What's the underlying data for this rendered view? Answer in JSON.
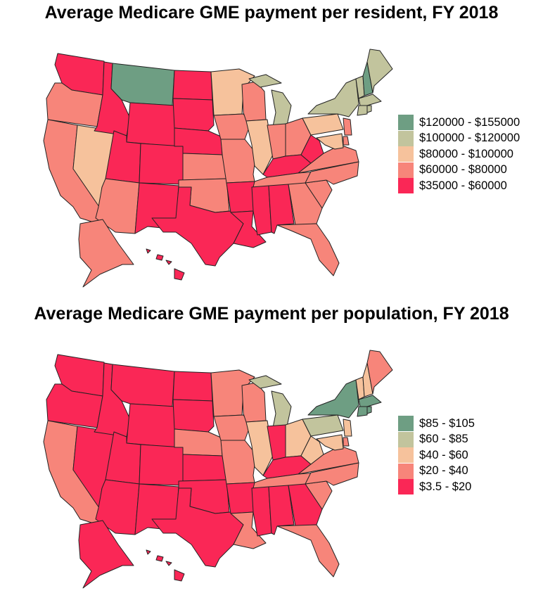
{
  "colors": {
    "c1": "#6e9e83",
    "c2": "#c2c49d",
    "c3": "#f6c29c",
    "c4": "#f7857a",
    "c5": "#fa2756"
  },
  "maps": [
    {
      "title": "Average Medicare GME payment per resident, FY 2018",
      "legend": [
        {
          "label": "$120000 - $155000",
          "color": "#6e9e83"
        },
        {
          "label": "$100000 - $120000",
          "color": "#c2c49d"
        },
        {
          "label": "$80000 - $100000",
          "color": "#f6c29c"
        },
        {
          "label": "$60000 - $80000",
          "color": "#f7857a"
        },
        {
          "label": "$35000 - $60000",
          "color": "#fa2756"
        }
      ],
      "states": {
        "WA": "c5",
        "OR": "c4",
        "CA": "c4",
        "NV": "c3",
        "ID": "c5",
        "MT": "c1",
        "WY": "c5",
        "UT": "c5",
        "AZ": "c4",
        "CO": "c5",
        "NM": "c5",
        "ND": "c5",
        "SD": "c5",
        "NE": "c5",
        "KS": "c4",
        "OK": "c4",
        "TX": "c5",
        "MN": "c3",
        "IA": "c4",
        "MO": "c4",
        "AR": "c5",
        "LA": "c5",
        "WI": "c4",
        "IL": "c3",
        "MI": "c2",
        "IN": "c4",
        "OH": "c4",
        "KY": "c5",
        "TN": "c4",
        "MS": "c5",
        "AL": "c5",
        "GA": "c4",
        "FL": "c4",
        "SC": "c4",
        "NC": "c4",
        "VA": "c4",
        "WV": "c5",
        "PA": "c3",
        "NY": "c2",
        "VT": "c2",
        "NH": "c1",
        "ME": "c2",
        "MA": "c2",
        "CT": "c2",
        "RI": "c2",
        "NJ": "c4",
        "DE": "c4",
        "MD": "c3",
        "AK": "c4",
        "HI": "c5"
      }
    },
    {
      "title": "Average Medicare GME payment per population, FY 2018",
      "legend": [
        {
          "label": "$85 - $105",
          "color": "#6e9e83"
        },
        {
          "label": "$60 - $85",
          "color": "#c2c49d"
        },
        {
          "label": "$40 - $60",
          "color": "#f6c29c"
        },
        {
          "label": "$20 - $40",
          "color": "#f7857a"
        },
        {
          "label": "$3.5 - $20",
          "color": "#fa2756"
        }
      ],
      "states": {
        "WA": "c5",
        "OR": "c5",
        "CA": "c4",
        "NV": "c5",
        "ID": "c5",
        "MT": "c5",
        "WY": "c5",
        "UT": "c5",
        "AZ": "c5",
        "CO": "c5",
        "NM": "c5",
        "ND": "c5",
        "SD": "c5",
        "NE": "c4",
        "KS": "c5",
        "OK": "c5",
        "TX": "c5",
        "MN": "c4",
        "IA": "c4",
        "MO": "c4",
        "AR": "c5",
        "LA": "c4",
        "WI": "c4",
        "IL": "c3",
        "MI": "c2",
        "IN": "c5",
        "OH": "c3",
        "KY": "c5",
        "TN": "c4",
        "MS": "c5",
        "AL": "c5",
        "GA": "c5",
        "FL": "c4",
        "SC": "c4",
        "NC": "c4",
        "VA": "c4",
        "WV": "c3",
        "PA": "c2",
        "NY": "c1",
        "VT": "c3",
        "NH": "c3",
        "ME": "c4",
        "MA": "c1",
        "CT": "c1",
        "RI": "c1",
        "NJ": "c3",
        "DE": "c4",
        "MD": "c3",
        "AK": "c5",
        "HI": "c5"
      }
    }
  ]
}
